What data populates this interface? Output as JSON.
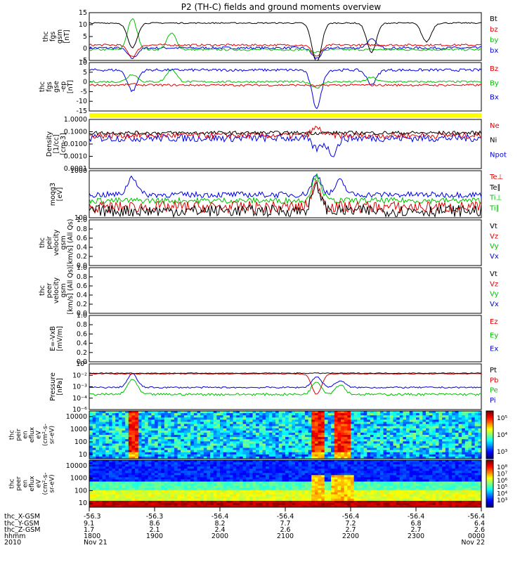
{
  "title": "P2 (TH-C) fields and ground moments overview",
  "chart_data": {
    "type": "line",
    "x": {
      "start_label": "1800",
      "end_label": "0000"
    },
    "bottom_labels": {
      "rows": [
        "thc_X-GSM",
        "thc_Y-GSM",
        "thc_Z-GSM",
        "hhmm",
        "2010"
      ],
      "columns": [
        [
          "-56.3",
          "9.1",
          "1.7",
          "1800",
          "Nov 21"
        ],
        [
          "-56.3",
          "8.6",
          "2.1",
          "1900",
          ""
        ],
        [
          "-56.4",
          "8.2",
          "2.4",
          "2000",
          ""
        ],
        [
          "-56.4",
          "7.7",
          "2.6",
          "2100",
          ""
        ],
        [
          "-56.4",
          "7.2",
          "2.7",
          "2200",
          ""
        ],
        [
          "-56.4",
          "6.8",
          "2.7",
          "2300",
          ""
        ],
        [
          "-56.4",
          "6.4",
          "2.6",
          "0000",
          "Nov 22"
        ]
      ]
    },
    "panels": [
      {
        "id": "fgs_gsm",
        "ylabel": [
          "thc",
          "fgs",
          "gsm",
          "[nT]"
        ],
        "yticks": [
          "15",
          "10",
          "5",
          "0",
          "-5"
        ],
        "ylim": [
          -7,
          16
        ],
        "legend": [
          {
            "text": "Bt",
            "color": "#000000"
          },
          {
            "text": "bz",
            "color": "#e00000"
          },
          {
            "text": "by",
            "color": "#00c000"
          },
          {
            "text": "bx",
            "color": "#0000e0"
          }
        ],
        "series": [
          {
            "color": "#0000e0",
            "base": -1.0,
            "noise": 0.6,
            "events": [
              [
                0.11,
                -6
              ],
              [
                0.58,
                -6
              ],
              [
                0.72,
                3
              ]
            ]
          },
          {
            "color": "#00c000",
            "base": -1.8,
            "noise": 0.5,
            "events": [
              [
                0.11,
                13
              ],
              [
                0.21,
                6
              ],
              [
                0.58,
                -3
              ]
            ]
          },
          {
            "color": "#e00000",
            "base": 0.4,
            "noise": 0.5,
            "events": [
              [
                0.11,
                -5
              ],
              [
                0.58,
                -5
              ]
            ]
          },
          {
            "color": "#000000",
            "base": 11.0,
            "noise": 0.3,
            "events": [
              [
                0.11,
                -1
              ],
              [
                0.58,
                -8
              ],
              [
                0.72,
                -3
              ],
              [
                0.86,
                2
              ]
            ]
          }
        ]
      },
      {
        "id": "fgs_gse",
        "ylabel": [
          "thc",
          "fgs",
          "gse",
          "-ep",
          "[nT]"
        ],
        "yticks": [
          "10",
          "5",
          "0",
          "-5",
          "-10",
          "-15"
        ],
        "ylim": [
          -18,
          11
        ],
        "legend": [
          {
            "text": "Bz",
            "color": "#e00000"
          },
          {
            "text": "By",
            "color": "#00c000"
          },
          {
            "text": "Bx",
            "color": "#0000e0"
          }
        ],
        "series": [
          {
            "color": "#0000e0",
            "base": 6.5,
            "noise": 0.8,
            "events": [
              [
                0.11,
                -6
              ],
              [
                0.58,
                -16
              ],
              [
                0.72,
                -2
              ]
            ]
          },
          {
            "color": "#00c000",
            "base": -0.5,
            "noise": 0.6,
            "events": [
              [
                0.11,
                4
              ],
              [
                0.21,
                7
              ],
              [
                0.58,
                -4
              ],
              [
                0.72,
                2
              ]
            ]
          },
          {
            "color": "#e00000",
            "base": -2.5,
            "noise": 0.6,
            "events": [
              [
                0.11,
                -2
              ],
              [
                0.58,
                -3
              ]
            ]
          }
        ]
      },
      {
        "id": "density",
        "ylabel": [
          "Density",
          "[1/cc]",
          "[cm-3]"
        ],
        "yticks": [
          "1.0000",
          "0.1000",
          "0.0100",
          "0.0010",
          "0.0001"
        ],
        "ylim": [
          0.0001,
          1.0
        ],
        "log": true,
        "legend": [
          {
            "text": "Ne",
            "color": "#e00000"
          },
          {
            "text": "Ni",
            "color": "#000000"
          },
          {
            "text": "Npot",
            "color": "#0000e0"
          }
        ],
        "series": [
          {
            "color": "#0000e0",
            "base": 0.03,
            "noise": 0.6,
            "events": [
              [
                0.58,
                0.004
              ],
              [
                0.62,
                0.0015
              ]
            ]
          },
          {
            "color": "#e00000",
            "base": 0.05,
            "noise": 0.5,
            "events": [
              [
                0.58,
                0.2
              ]
            ]
          },
          {
            "color": "#000000",
            "base": 0.08,
            "noise": 0.3,
            "events": []
          }
        ]
      },
      {
        "id": "temp",
        "ylabel": [
          "moqg3",
          "[eV]"
        ],
        "yticks": [
          "1000",
          "100"
        ],
        "ylim": [
          20,
          5000
        ],
        "log": true,
        "legend": [
          {
            "text": "Te⊥",
            "color": "#e00000"
          },
          {
            "text": "Te∥",
            "color": "#000000"
          },
          {
            "text": "Ti⊥",
            "color": "#00c000"
          },
          {
            "text": "Ti∥",
            "color": "#00c000"
          }
        ],
        "series": [
          {
            "color": "#0000e0",
            "base": 300,
            "noise": 0.3,
            "events": [
              [
                0.11,
                2500
              ],
              [
                0.58,
                3000
              ],
              [
                0.64,
                1500
              ]
            ]
          },
          {
            "color": "#00c000",
            "base": 150,
            "noise": 0.3,
            "events": [
              [
                0.58,
                2500
              ]
            ]
          },
          {
            "color": "#e00000",
            "base": 70,
            "noise": 0.6,
            "events": [
              [
                0.58,
                1000
              ]
            ]
          },
          {
            "color": "#000000",
            "base": 45,
            "noise": 0.6,
            "events": [
              [
                0.58,
                700
              ]
            ]
          }
        ]
      },
      {
        "id": "peir_vel",
        "ylabel": [
          "thc",
          "peir",
          "velocity",
          "gsm",
          "[km/s] (All Qs)"
        ],
        "yticks": [
          "1.0",
          "0.8",
          "0.6",
          "0.4",
          "0.2",
          "0.0"
        ],
        "ylim": [
          0,
          1
        ],
        "legend": [
          {
            "text": "Vt",
            "color": "#000000"
          },
          {
            "text": "Vz",
            "color": "#e00000"
          },
          {
            "text": "Vy",
            "color": "#00c000"
          },
          {
            "text": "Vx",
            "color": "#0000e0"
          }
        ],
        "series": []
      },
      {
        "id": "peer_vel",
        "ylabel": [
          "thc",
          "peer",
          "velocity",
          "gsm",
          "[km/s] (All Qs)"
        ],
        "yticks": [
          "1.0",
          "0.8",
          "0.6",
          "0.4",
          "0.2",
          "0.0"
        ],
        "ylim": [
          0,
          1
        ],
        "legend": [
          {
            "text": "Vt",
            "color": "#000000"
          },
          {
            "text": "Vz",
            "color": "#e00000"
          },
          {
            "text": "Vy",
            "color": "#00c000"
          },
          {
            "text": "Vx",
            "color": "#0000e0"
          }
        ],
        "series": []
      },
      {
        "id": "efield",
        "ylabel": [
          "E=-VxB",
          "[mV/m]"
        ],
        "yticks": [
          "1.0",
          "0.8",
          "0.6",
          "0.4",
          "0.2",
          "0.0"
        ],
        "ylim": [
          0,
          1
        ],
        "legend": [
          {
            "text": "Ez",
            "color": "#e00000"
          },
          {
            "text": "Ey",
            "color": "#00c000"
          },
          {
            "text": "Ex",
            "color": "#0000e0"
          }
        ],
        "series": []
      },
      {
        "id": "pressure",
        "ylabel": [
          "Pressure",
          "[nPa]"
        ],
        "yticks": [
          "10⁰",
          "10⁻²",
          "10⁻³",
          "10⁻⁴",
          "10⁻⁶"
        ],
        "ylim": [
          1e-06,
          1
        ],
        "log": true,
        "legend": [
          {
            "text": "Pt",
            "color": "#000000"
          },
          {
            "text": "Pb",
            "color": "#e00000"
          },
          {
            "text": "Pe",
            "color": "#00c000"
          },
          {
            "text": "Pi",
            "color": "#0000e0"
          }
        ],
        "series": [
          {
            "color": "#00c000",
            "base": 0.0001,
            "noise": 0.3,
            "events": [
              [
                0.11,
                0.01
              ],
              [
                0.58,
                0.005
              ],
              [
                0.64,
                0.002
              ]
            ]
          },
          {
            "color": "#0000e0",
            "base": 0.0008,
            "noise": 0.2,
            "events": [
              [
                0.11,
                0.05
              ],
              [
                0.58,
                0.02
              ],
              [
                0.64,
                0.006
              ]
            ]
          },
          {
            "color": "#e00000",
            "base": 0.05,
            "noise": 0.1,
            "events": [
              [
                0.58,
                0.0001
              ]
            ]
          },
          {
            "color": "#000000",
            "base": 0.06,
            "noise": 0.1,
            "events": []
          }
        ]
      }
    ],
    "spectra": [
      {
        "id": "peir_eflux",
        "ylabel": [
          "thc",
          "peir",
          "en",
          "eflux",
          "eV",
          "(cm²-s-",
          "sr-eV)"
        ],
        "yticks": [
          "10000",
          "1000",
          "100",
          "10"
        ],
        "ylim": [
          10,
          20000
        ],
        "colorbar_ticks": [
          "10⁵",
          "10⁴",
          "10³"
        ],
        "type": "heatmap"
      },
      {
        "id": "peer_eflux",
        "ylabel": [
          "thc",
          "peer",
          "en",
          "eflux",
          "eV",
          "(cm²-s-",
          "sr-eV)"
        ],
        "yticks": [
          "10000",
          "1000",
          "100",
          "10"
        ],
        "ylim": [
          8,
          20000
        ],
        "colorbar_ticks": [
          "10⁸",
          "10⁷",
          "10⁶",
          "10⁵",
          "10⁴",
          "10³"
        ],
        "type": "heatmap"
      }
    ]
  }
}
